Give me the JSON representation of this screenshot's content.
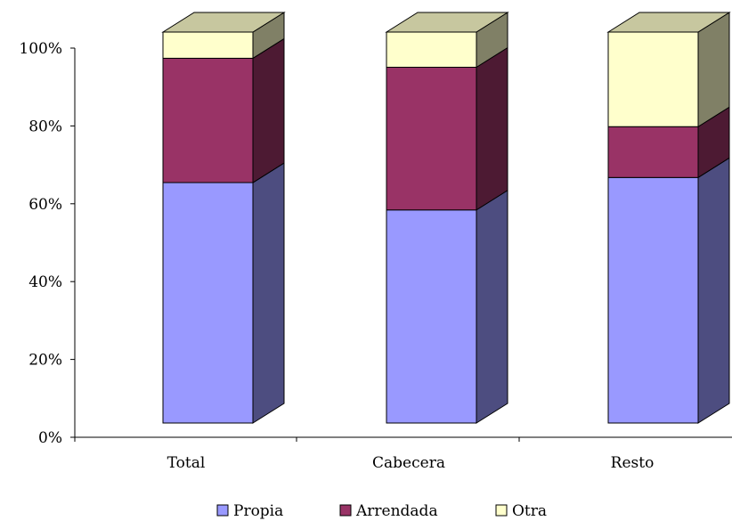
{
  "chart_data": {
    "type": "bar",
    "stacked": true,
    "percent_stacked": true,
    "three_d": true,
    "categories": [
      "Total",
      "Cabecera",
      "Resto"
    ],
    "series": [
      {
        "name": "Propia",
        "values": [
          61.5,
          54.5,
          62.8
        ],
        "color": "#9999ff"
      },
      {
        "name": "Arrendada",
        "values": [
          31.8,
          36.5,
          13.0
        ],
        "color": "#993366"
      },
      {
        "name": "Otra",
        "values": [
          6.7,
          9.0,
          24.2
        ],
        "color": "#ffffcc"
      }
    ],
    "title": "",
    "xlabel": "",
    "ylabel": "",
    "ylim": [
      0,
      100
    ],
    "y_ticks": [
      "0%",
      "20%",
      "40%",
      "60%",
      "80%",
      "100%"
    ],
    "grid": false,
    "legend_position": "bottom"
  }
}
